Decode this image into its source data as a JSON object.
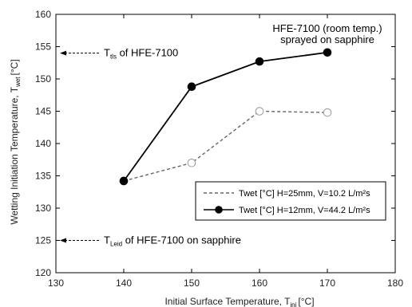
{
  "chart_data": {
    "type": "line",
    "xlabel": "Initial Surface Temperature, T",
    "xlabel_sub": "ini",
    "xlabel_unit": "[°C]",
    "ylabel": "Wetting Initiation Temperature, T",
    "ylabel_sub": "wet",
    "ylabel_unit": "[°C]",
    "xlim": [
      130,
      180
    ],
    "ylim": [
      120,
      160
    ],
    "xticks": [
      "130",
      "140",
      "150",
      "160",
      "170",
      "180"
    ],
    "yticks": [
      "120",
      "125",
      "130",
      "135",
      "140",
      "145",
      "150",
      "155",
      "160"
    ],
    "grid": false,
    "series": [
      {
        "name": "Twet [°C]  H=25mm, V=10.2 L/m²s",
        "style": "dashed",
        "marker": "open-circle",
        "color": "#666666",
        "x": [
          140,
          150,
          160,
          170
        ],
        "y": [
          134.2,
          137.0,
          145.0,
          144.8
        ]
      },
      {
        "name": "Twet [°C]  H=12mm, V=44.2 L/m²s",
        "style": "solid",
        "marker": "filled-circle",
        "color": "#000000",
        "x": [
          140,
          150,
          160,
          170
        ],
        "y": [
          134.2,
          148.8,
          152.7,
          154.1
        ]
      }
    ],
    "annotations": {
      "top_right_line1": "HFE-7100 (room temp.)",
      "top_right_line2": "sprayed on sapphire",
      "ttls_prefix": "T",
      "ttls_sub": "tls",
      "ttls_suffix": " of HFE-7100",
      "ttls_value": 154,
      "tleid_prefix": "T",
      "tleid_sub": "Leid",
      "tleid_suffix": " of HFE-7100 on sapphire",
      "tleid_value": 125
    },
    "legend_position": "lower-right"
  }
}
